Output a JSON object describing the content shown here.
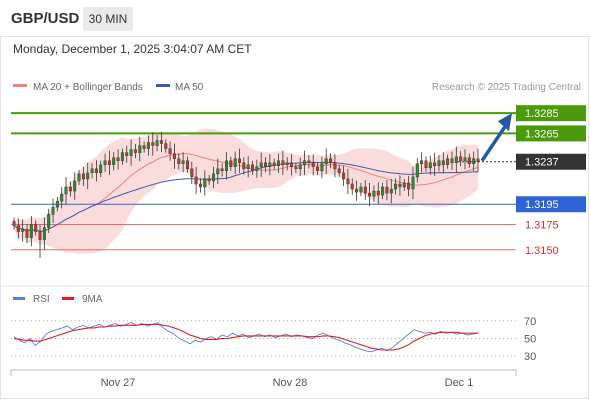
{
  "header": {
    "symbol": "GBP/USD",
    "timeframe": "30 MIN",
    "datetime": "Monday, December 1, 2025 3:04:07 AM CET"
  },
  "colors": {
    "resistance": "#4a9a0a",
    "support": "#2e62d6",
    "support_minor": "#e07070",
    "current_price": "#333333",
    "arrow": "#2458a6",
    "bollinger_fill": "#f9d6d6",
    "ma20": "#f08080",
    "ma50": "#3d5aa8",
    "candle_up": "#2e8a2e",
    "candle_down": "#c0392b",
    "rsi": "#5b7fd6",
    "rsi_ma": "#e02020"
  },
  "chart_data": [
    {
      "type": "candlestick",
      "title": "",
      "legend": [
        {
          "name": "MA 20 + Bollinger Bands",
          "color": "#f08080"
        },
        {
          "name": "MA 50",
          "color": "#3d5aa8"
        }
      ],
      "legend_position": "top-left",
      "credit": "Research © 2025 Trading Central",
      "ylim": [
        1.313,
        1.33
      ],
      "x_ticks": [
        "Nov 27",
        "Nov 28",
        "Dec 1"
      ],
      "current_price": {
        "value": 1.3237,
        "label": "1.3237"
      },
      "levels": [
        {
          "value": 1.3285,
          "label": "1.3285",
          "kind": "resistance",
          "boxed": true
        },
        {
          "value": 1.3265,
          "label": "1.3265",
          "kind": "resistance",
          "boxed": true
        },
        {
          "value": 1.3195,
          "label": "1.3195",
          "kind": "support",
          "boxed": true
        },
        {
          "value": 1.3175,
          "label": "1.3175",
          "kind": "support_minor",
          "boxed": false
        },
        {
          "value": 1.315,
          "label": "1.3150",
          "kind": "support_minor",
          "boxed": false
        }
      ],
      "arrow": {
        "from": 1.3237,
        "to": 1.3285,
        "direction": "up"
      },
      "closes": [
        1.3174,
        1.3168,
        1.317,
        1.3162,
        1.3175,
        1.3168,
        1.316,
        1.3172,
        1.3185,
        1.3192,
        1.3198,
        1.3205,
        1.3212,
        1.3208,
        1.3218,
        1.3225,
        1.322,
        1.3226,
        1.323,
        1.3226,
        1.3234,
        1.3238,
        1.3234,
        1.3241,
        1.3238,
        1.3246,
        1.3243,
        1.3249,
        1.3246,
        1.3253,
        1.325,
        1.3256,
        1.3253,
        1.3258,
        1.3255,
        1.325,
        1.3245,
        1.324,
        1.3235,
        1.3238,
        1.323,
        1.3222,
        1.3215,
        1.3212,
        1.322,
        1.3218,
        1.3225,
        1.323,
        1.3228,
        1.3238,
        1.3232,
        1.324,
        1.3236,
        1.323,
        1.3234,
        1.3228,
        1.3232,
        1.3236,
        1.3232,
        1.3236,
        1.3233,
        1.3238,
        1.3234,
        1.3236,
        1.3232,
        1.323,
        1.3234,
        1.3238,
        1.3236,
        1.3232,
        1.3228,
        1.3235,
        1.324,
        1.3236,
        1.323,
        1.3226,
        1.322,
        1.3215,
        1.321,
        1.3207,
        1.3212,
        1.3206,
        1.3203,
        1.3208,
        1.3204,
        1.3212,
        1.3206,
        1.321,
        1.3215,
        1.3212,
        1.3216,
        1.321,
        1.3222,
        1.3235,
        1.3238,
        1.3231,
        1.3236,
        1.3233,
        1.3238,
        1.3234,
        1.324,
        1.3236,
        1.3242,
        1.3238,
        1.3241,
        1.3235,
        1.324,
        1.3237
      ]
    },
    {
      "type": "line",
      "title": "",
      "legend": [
        {
          "name": "RSI",
          "color": "#5b7fd6"
        },
        {
          "name": "9MA",
          "color": "#e02020"
        }
      ],
      "legend_position": "top-left",
      "ylim": [
        20,
        80
      ],
      "y_ticks": [
        70,
        50,
        30
      ],
      "rsi": [
        52,
        48,
        45,
        50,
        42,
        47,
        55,
        58,
        60,
        62,
        64,
        60,
        63,
        65,
        62,
        64,
        66,
        63,
        65,
        67,
        64,
        66,
        68,
        65,
        67,
        64,
        66,
        68,
        62,
        58,
        55,
        50,
        47,
        44,
        48,
        46,
        50,
        52,
        49,
        54,
        52,
        56,
        53,
        55,
        51,
        53,
        55,
        52,
        54,
        51,
        53,
        55,
        52,
        54,
        53,
        51,
        50,
        54,
        56,
        53,
        50,
        48,
        45,
        43,
        40,
        38,
        36,
        35,
        37,
        39,
        36,
        40,
        45,
        50,
        55,
        60,
        58,
        56,
        57,
        55,
        58,
        56,
        57,
        55,
        56,
        54,
        55,
        56
      ],
      "rsi_9ma": [
        50,
        49,
        48,
        48,
        47,
        47,
        49,
        51,
        53,
        55,
        57,
        59,
        60,
        61,
        62,
        62,
        63,
        63,
        64,
        64,
        65,
        65,
        65,
        65,
        66,
        66,
        66,
        66,
        65,
        64,
        62,
        60,
        57,
        54,
        52,
        50,
        49,
        49,
        49,
        50,
        50,
        51,
        52,
        53,
        53,
        53,
        53,
        53,
        53,
        53,
        53,
        53,
        53,
        53,
        53,
        52,
        52,
        52,
        53,
        53,
        52,
        51,
        49,
        47,
        45,
        43,
        41,
        39,
        38,
        37,
        37,
        37,
        38,
        40,
        43,
        47,
        50,
        53,
        55,
        56,
        57,
        57,
        57,
        57,
        56,
        56,
        56,
        56
      ]
    }
  ]
}
